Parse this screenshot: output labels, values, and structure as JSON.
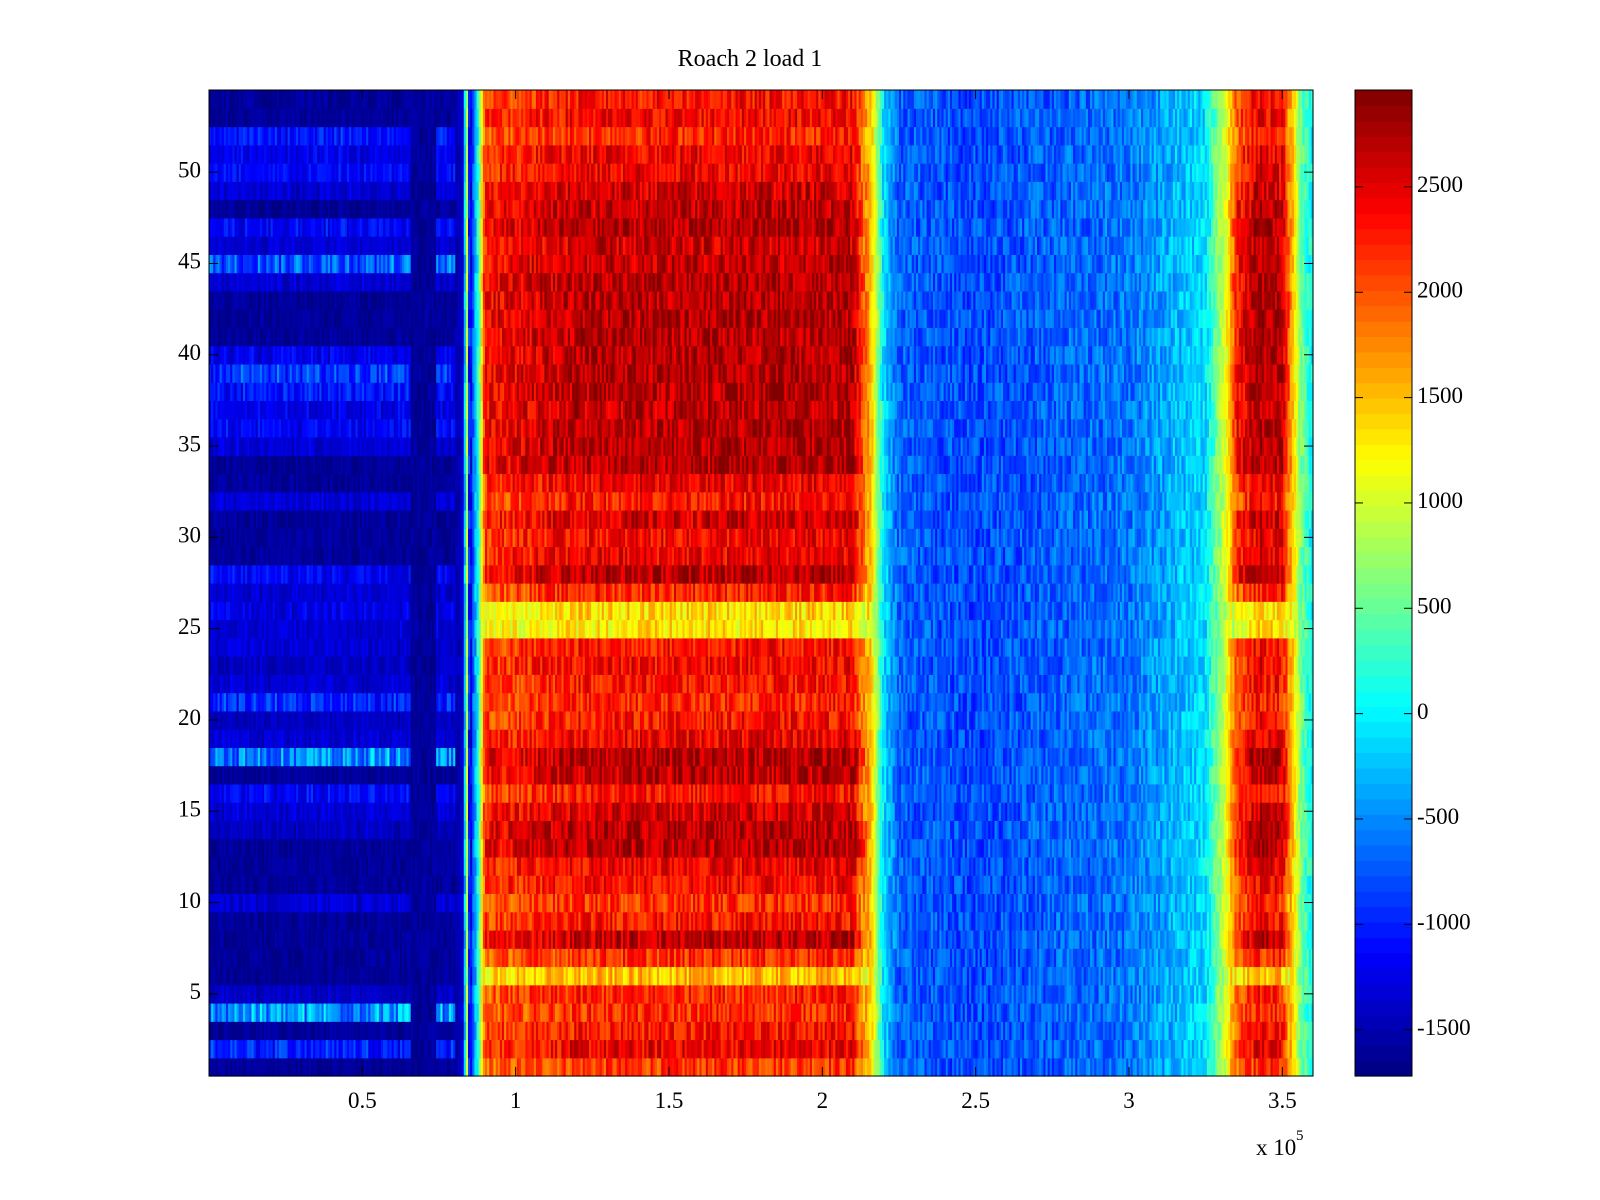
{
  "chart_data": {
    "type": "heatmap",
    "title": "Roach 2 load 1",
    "xlabel": "",
    "ylabel": "",
    "x_exponent_label": "x 10",
    "x_exponent": "5",
    "xlim": [
      0,
      3.6
    ],
    "ylim": [
      0.5,
      54.5
    ],
    "clim": [
      -1720,
      2960
    ],
    "xticks": [
      0.5,
      1,
      1.5,
      2,
      2.5,
      3,
      3.5
    ],
    "xtick_labels": [
      "0.5",
      "1",
      "1.5",
      "2",
      "2.5",
      "3",
      "3.5"
    ],
    "yticks": [
      5,
      10,
      15,
      20,
      25,
      30,
      35,
      40,
      45,
      50
    ],
    "ytick_labels": [
      "5",
      "10",
      "15",
      "20",
      "25",
      "30",
      "35",
      "40",
      "45",
      "50"
    ],
    "colorbar_ticks": [
      -1500,
      -1000,
      -500,
      0,
      500,
      1000,
      1500,
      2000,
      2500
    ],
    "colorbar_tick_labels": [
      "-1500",
      "-1000",
      "-500",
      "0",
      "500",
      "1000",
      "1500",
      "2000",
      "2500"
    ],
    "colormap": "jet",
    "n_rows": 54,
    "column_profile": {
      "x": [
        0.0,
        0.8,
        0.83,
        0.84,
        0.85,
        0.86,
        0.88,
        0.9,
        1.2,
        2.1,
        2.16,
        2.2,
        2.25,
        2.5,
        3.0,
        3.25,
        3.32,
        3.35,
        3.42,
        3.5,
        3.56,
        3.6
      ],
      "value": [
        -1600,
        -1600,
        -1300,
        1200,
        -1500,
        -800,
        300,
        2400,
        2700,
        2750,
        1500,
        -100,
        -700,
        -800,
        -600,
        -100,
        1200,
        2300,
        2800,
        2700,
        600,
        0
      ]
    },
    "row_scale": [
      0.78,
      0.9,
      0.85,
      0.8,
      0.82,
      0.55,
      0.8,
      0.98,
      0.85,
      0.8,
      0.88,
      0.9,
      1.0,
      1.0,
      0.95,
      0.85,
      0.98,
      1.0,
      0.9,
      0.85,
      0.82,
      0.85,
      0.88,
      0.85,
      0.48,
      0.5,
      0.82,
      1.0,
      0.9,
      0.88,
      0.95,
      0.85,
      0.9,
      1.0,
      1.0,
      1.0,
      0.98,
      1.0,
      1.0,
      1.0,
      1.0,
      1.0,
      1.0,
      1.0,
      0.98,
      0.95,
      1.0,
      0.98,
      0.95,
      0.9,
      0.9,
      0.82,
      0.88,
      0.85
    ],
    "row_low_offset": [
      0,
      700,
      0,
      1300,
      200,
      0,
      0,
      0,
      0,
      300,
      0,
      0,
      0,
      200,
      300,
      500,
      0,
      1200,
      300,
      200,
      700,
      300,
      200,
      300,
      300,
      400,
      300,
      500,
      0,
      0,
      0,
      300,
      0,
      0,
      300,
      500,
      400,
      600,
      800,
      400,
      0,
      0,
      0,
      300,
      1000,
      300,
      500,
      0,
      300,
      500,
      400,
      600,
      0,
      0
    ]
  }
}
